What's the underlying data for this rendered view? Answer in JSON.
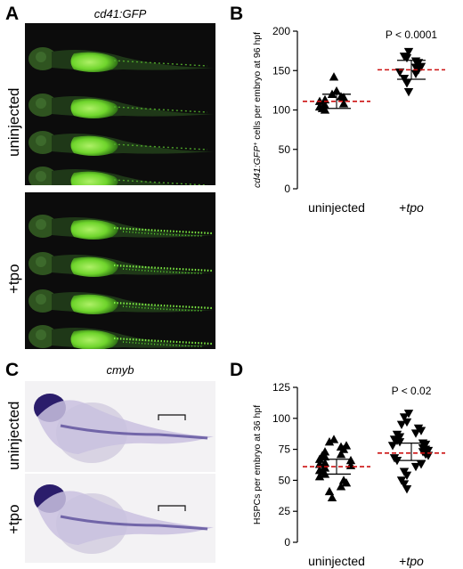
{
  "panels": {
    "a": {
      "letter": "A",
      "title": "cd41:GFP",
      "row1_label": "uninjected",
      "row2_label": "+tpo"
    },
    "b": {
      "letter": "B"
    },
    "c": {
      "letter": "C",
      "title": "cmyb",
      "row1_label": "uninjected",
      "row2_label": "+tpo"
    },
    "d": {
      "letter": "D"
    }
  },
  "chart_data": [
    {
      "type": "scatter",
      "panel": "B",
      "ylabel": "cd41:GFP+ cells per embryo at 96 hpf",
      "ylabel_parts": {
        "italic": "cd41:GFP",
        "sup": "+",
        "rest": " cells per embryo at 96 hpf"
      },
      "ylim": [
        0,
        200
      ],
      "yticks": [
        0,
        50,
        100,
        150,
        200
      ],
      "categories": [
        "uninjected",
        "+tpo"
      ],
      "category_parts": [
        {
          "plain": "uninjected",
          "italic": ""
        },
        {
          "plain": "+",
          "italic": "tpo"
        }
      ],
      "annotation": "P < 0.0001",
      "marker_shapes": [
        "triangle-up",
        "triangle-down"
      ],
      "series": [
        {
          "values": [
            142,
            124,
            120,
            117,
            116,
            113,
            111,
            108,
            106,
            104,
            102,
            100
          ],
          "mean": 111,
          "sd_upper": 120,
          "sd_lower": 102
        },
        {
          "values": [
            174,
            168,
            166,
            162,
            160,
            155,
            154,
            151,
            148,
            146,
            140,
            134,
            123
          ],
          "mean": 151,
          "sd_upper": 163,
          "sd_lower": 139
        }
      ],
      "mean_line_color": "#cc1111"
    },
    {
      "type": "scatter",
      "panel": "D",
      "ylabel": "HSPCs per embryo at 36 hpf",
      "ylim": [
        0,
        125
      ],
      "yticks": [
        0,
        25,
        50,
        75,
        100,
        125
      ],
      "categories": [
        "uninjected",
        "+tpo"
      ],
      "category_parts": [
        {
          "plain": "uninjected",
          "italic": ""
        },
        {
          "plain": "+",
          "italic": "tpo"
        }
      ],
      "annotation": "P < 0.02",
      "marker_shapes": [
        "triangle-up",
        "triangle-down"
      ],
      "series": [
        {
          "values": [
            83,
            81,
            78,
            77,
            75,
            73,
            71,
            70,
            69,
            67,
            66,
            64,
            63,
            62,
            60,
            58,
            57,
            55,
            53,
            50,
            48,
            45,
            41,
            36
          ],
          "mean": 61,
          "sd_upper": 67,
          "sd_lower": 55
        },
        {
          "values": [
            104,
            101,
            97,
            95,
            92,
            90,
            88,
            87,
            85,
            83,
            82,
            81,
            80,
            79,
            78,
            76,
            75,
            74,
            73,
            71,
            70,
            68,
            66,
            63,
            61,
            57,
            54,
            50,
            47,
            43
          ],
          "mean": 72,
          "sd_upper": 80,
          "sd_lower": 66
        },
        {
          "values": [],
          "note": ""
        }
      ],
      "mean_line_color": "#cc1111"
    }
  ]
}
